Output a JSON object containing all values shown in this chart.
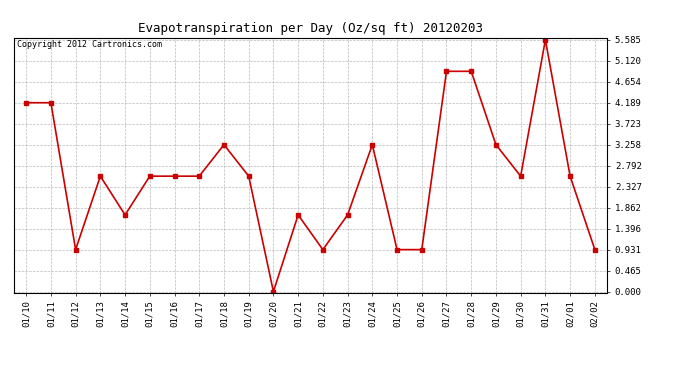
{
  "title": "Evapotranspiration per Day (Oz/sq ft) 20120203",
  "copyright_text": "Copyright 2012 Cartronics.com",
  "x_labels": [
    "01/10",
    "01/11",
    "01/12",
    "01/13",
    "01/14",
    "01/15",
    "01/16",
    "01/17",
    "01/18",
    "01/19",
    "01/20",
    "01/21",
    "01/22",
    "01/23",
    "01/24",
    "01/25",
    "01/26",
    "01/27",
    "01/28",
    "01/29",
    "01/30",
    "01/31",
    "02/01",
    "02/02"
  ],
  "y_values": [
    4.189,
    4.189,
    0.931,
    2.56,
    1.7,
    2.56,
    2.56,
    2.56,
    3.258,
    2.56,
    0.0,
    1.7,
    0.931,
    1.7,
    3.258,
    0.931,
    0.931,
    4.885,
    4.885,
    3.258,
    2.56,
    5.585,
    2.56,
    0.931
  ],
  "y_min": 0.0,
  "y_max": 5.585,
  "y_ticks": [
    0.0,
    0.465,
    0.931,
    1.396,
    1.862,
    2.327,
    2.792,
    3.258,
    3.723,
    4.189,
    4.654,
    5.12,
    5.585
  ],
  "line_color": "#cc0000",
  "marker_style": "s",
  "marker_size": 2.5,
  "background_color": "#ffffff",
  "grid_color": "#aaaaaa",
  "title_fontsize": 9,
  "copyright_fontsize": 6,
  "tick_fontsize": 6.5,
  "axis_bg_color": "#ffffff"
}
